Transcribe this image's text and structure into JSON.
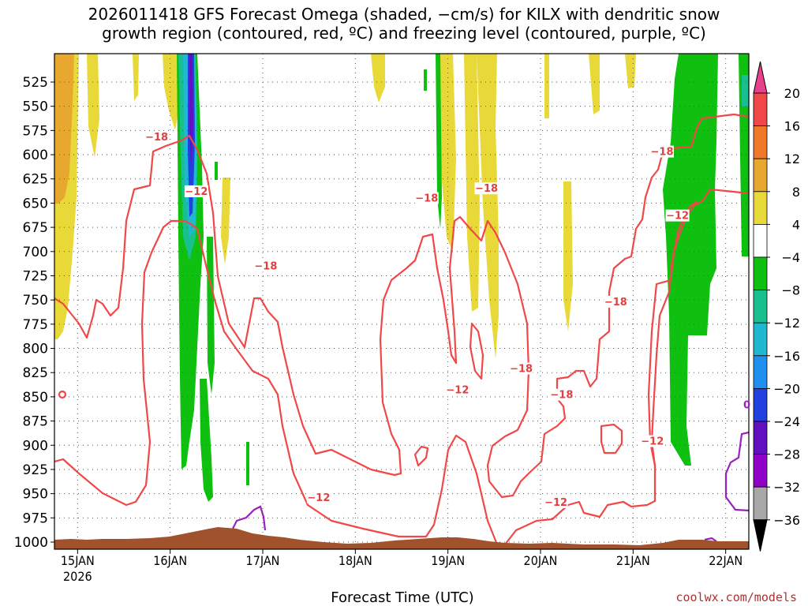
{
  "chart_data": {
    "type": "time-height cross section",
    "title_line1": "2026011418 GFS Forecast Omega (shaded, −cm/s) for KILX with dendritic snow",
    "title_line2": "growth region (contoured, red, ºC) and freezing level (contoured, purple, ºC)",
    "xlabel": "Forecast Time (UTC)",
    "credit": "coolwx.com/models",
    "y_levels": [
      "525",
      "550",
      "575",
      "600",
      "625",
      "650",
      "675",
      "700",
      "725",
      "750",
      "775",
      "800",
      "825",
      "850",
      "875",
      "900",
      "925",
      "950",
      "975",
      "1000"
    ],
    "y_values": [
      525,
      550,
      575,
      600,
      625,
      650,
      675,
      700,
      725,
      750,
      775,
      800,
      825,
      850,
      875,
      900,
      925,
      950,
      975,
      1000
    ],
    "ylim_hpa": [
      505,
      1012
    ],
    "x_ticks": [
      {
        "label": "15JAN",
        "sub": "2026",
        "hours": 6
      },
      {
        "label": "16JAN",
        "sub": "",
        "hours": 30
      },
      {
        "label": "17JAN",
        "sub": "",
        "hours": 54
      },
      {
        "label": "18JAN",
        "sub": "",
        "hours": 78
      },
      {
        "label": "19JAN",
        "sub": "",
        "hours": 102
      },
      {
        "label": "20JAN",
        "sub": "",
        "hours": 126
      },
      {
        "label": "21JAN",
        "sub": "",
        "hours": 150
      },
      {
        "label": "22JAN",
        "sub": "",
        "hours": 174
      }
    ],
    "xlim_hours": [
      0,
      180
    ],
    "colorbar": {
      "labels": [
        "20",
        "16",
        "12",
        "8",
        "4",
        "−4",
        "−8",
        "−12",
        "−16",
        "−20",
        "−24",
        "−28",
        "−32",
        "−36"
      ],
      "colors": [
        "#e8408a",
        "#f04848",
        "#f07828",
        "#e8a830",
        "#e8d838",
        "#ffffff",
        "#10c010",
        "#18c090",
        "#20b8d0",
        "#2090f0",
        "#2040e0",
        "#6010c0",
        "#9000c8",
        "#a8a8a8",
        "#000000"
      ]
    },
    "shading_colors": {
      "yellow": "#e8d838",
      "orange": "#e8a830",
      "green": "#10c010",
      "teal": "#18c090",
      "cyan": "#20b8d0",
      "blue": "#2040e0",
      "purple": "#6010c0",
      "terrain": "#a0522d",
      "contour_red": "#f04848",
      "freezing_purple": "#9a20c0"
    },
    "contour_labels": [
      {
        "text": "−18",
        "h": 26.5,
        "p": 583
      },
      {
        "text": "−12",
        "h": 36.8,
        "p": 639
      },
      {
        "text": "−18",
        "h": 54.8,
        "p": 716
      },
      {
        "text": "−12",
        "h": 68.5,
        "p": 955
      },
      {
        "text": "−18",
        "h": 96.5,
        "p": 646
      },
      {
        "text": "−12",
        "h": 104.5,
        "p": 844
      },
      {
        "text": "−18",
        "h": 112.0,
        "p": 636
      },
      {
        "text": "−18",
        "h": 121.0,
        "p": 822
      },
      {
        "text": "−18",
        "h": 131.5,
        "p": 849
      },
      {
        "text": "−12",
        "h": 130.0,
        "p": 960
      },
      {
        "text": "−18",
        "h": 145.5,
        "p": 753
      },
      {
        "text": "−12",
        "h": 155.0,
        "p": 897
      },
      {
        "text": "−18",
        "h": 157.5,
        "p": 598
      },
      {
        "text": "−12",
        "h": 161.5,
        "p": 664
      }
    ],
    "freezing_labels": [
      {
        "text": "0",
        "h": 179.5,
        "p": 862
      }
    ]
  }
}
